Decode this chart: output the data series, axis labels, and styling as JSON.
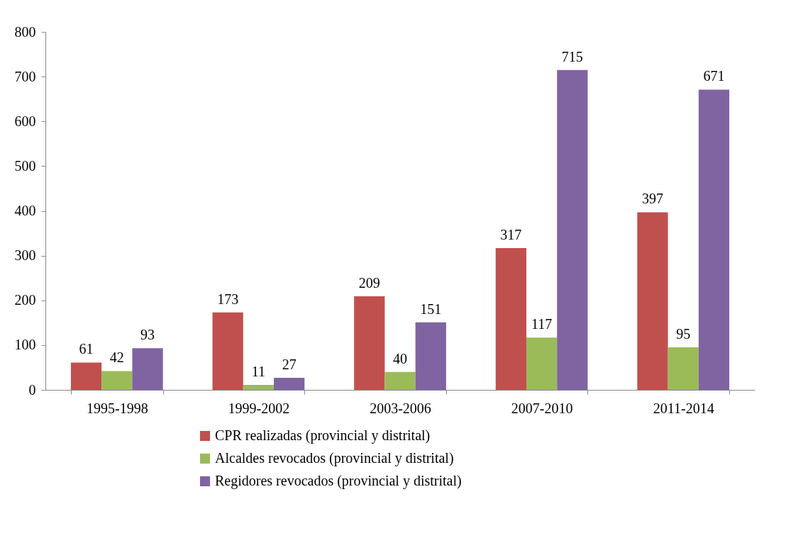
{
  "chart_data": {
    "type": "bar",
    "categories": [
      "1995-1998",
      "1999-2002",
      "2003-2006",
      "2007-2010",
      "2011-2014"
    ],
    "series": [
      {
        "name": "CPR realizadas (provincial y distrital)",
        "color": "#c0504d",
        "values": [
          61,
          173,
          209,
          317,
          397
        ]
      },
      {
        "name": "Alcaldes revocados (provincial y distrital)",
        "color": "#9bbb59",
        "values": [
          42,
          11,
          40,
          117,
          95
        ]
      },
      {
        "name": "Regidores revocados (provincial y distrital)",
        "color": "#8064a2",
        "values": [
          93,
          27,
          151,
          715,
          671
        ]
      }
    ],
    "ylim": [
      0,
      800
    ],
    "yticks": [
      0,
      100,
      200,
      300,
      400,
      500,
      600,
      700,
      800
    ],
    "data_labels": true,
    "grid": false,
    "legend": "bottom"
  }
}
